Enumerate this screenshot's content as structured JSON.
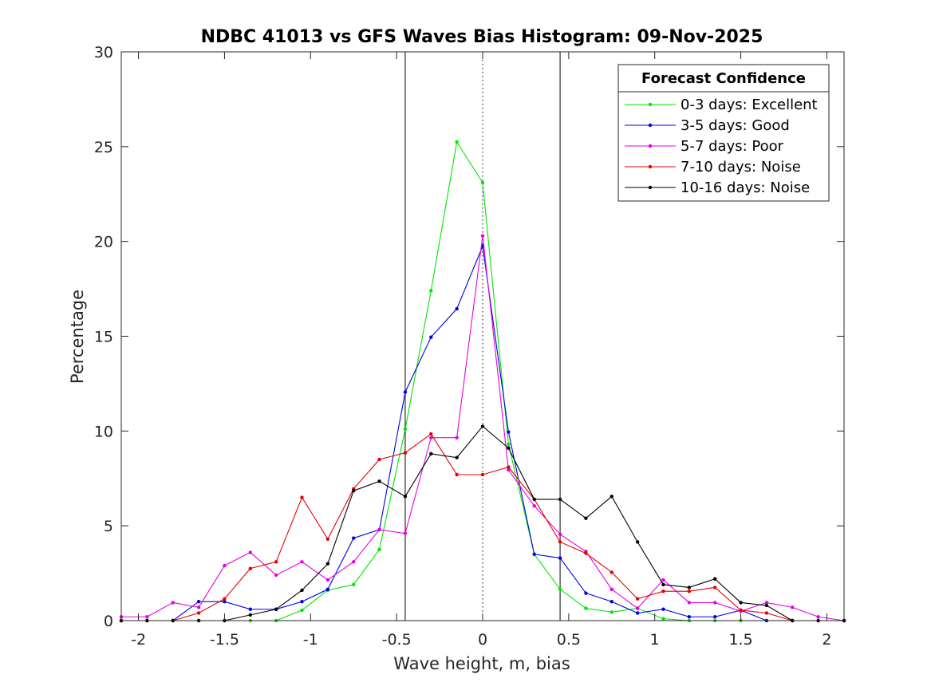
{
  "chart_data": {
    "type": "line",
    "title": "NDBC 41013 vs GFS Waves Bias Histogram: 09-Nov-2025",
    "xlabel": "Wave height, m, bias",
    "ylabel": "Percentage",
    "xlim": [
      -2.1,
      2.1
    ],
    "ylim": [
      0,
      30
    ],
    "xticks": [
      -2,
      -1.5,
      -1,
      -0.5,
      0,
      0.5,
      1,
      1.5,
      2
    ],
    "xtick_labels": [
      "-2",
      "-1.5",
      "-1",
      "-0.5",
      "0",
      "0.5",
      "1",
      "1.5",
      "2"
    ],
    "yticks": [
      0,
      5,
      10,
      15,
      20,
      25,
      30
    ],
    "ytick_labels": [
      "0",
      "5",
      "10",
      "15",
      "20",
      "25",
      "30"
    ],
    "reference_lines": [
      {
        "x": -0.45,
        "style": "solid"
      },
      {
        "x": 0,
        "style": "dotted"
      },
      {
        "x": 0.45,
        "style": "solid"
      }
    ],
    "legend": {
      "title": "Forecast Confidence",
      "position": "top-right"
    },
    "x": [
      -2.1,
      -1.95,
      -1.8,
      -1.65,
      -1.5,
      -1.35,
      -1.2,
      -1.05,
      -0.9,
      -0.75,
      -0.6,
      -0.45,
      -0.3,
      -0.15,
      0,
      0.15,
      0.3,
      0.45,
      0.6,
      0.75,
      0.9,
      1.05,
      1.2,
      1.35,
      1.5,
      1.65,
      1.8,
      1.95,
      2.1
    ],
    "series": [
      {
        "name": "0-3 days: Excellent",
        "color": "#00e600",
        "values": [
          0,
          0,
          0,
          0,
          0,
          0,
          0,
          0.55,
          1.6,
          1.9,
          3.75,
          10.1,
          17.4,
          25.25,
          23.1,
          9.3,
          3.5,
          1.65,
          0.65,
          0.45,
          0.65,
          0.1,
          0,
          0,
          0,
          0,
          0,
          0,
          0
        ]
      },
      {
        "name": "3-5 days: Good",
        "color": "#0000e6",
        "values": [
          0,
          0,
          0,
          1.0,
          1.0,
          0.6,
          0.6,
          1.0,
          1.65,
          4.35,
          4.8,
          12.05,
          14.95,
          16.45,
          19.75,
          9.95,
          3.5,
          3.3,
          1.45,
          1.0,
          0.4,
          0.6,
          0.2,
          0.2,
          0.55,
          0,
          0,
          0,
          0
        ]
      },
      {
        "name": "5-7 days: Poor",
        "color": "#e600e6",
        "values": [
          0.2,
          0.2,
          0.95,
          0.7,
          2.9,
          3.6,
          2.4,
          3.1,
          2.15,
          3.1,
          4.8,
          4.6,
          9.65,
          9.65,
          20.3,
          7.95,
          6.05,
          4.55,
          3.65,
          1.65,
          0.65,
          2.15,
          0.95,
          0.95,
          0.5,
          0.95,
          0.7,
          0.2,
          0
        ]
      },
      {
        "name": "7-10 days: Noise",
        "color": "#e60000",
        "values": [
          0,
          0,
          0,
          0.4,
          1.15,
          2.75,
          3.1,
          6.5,
          4.3,
          6.95,
          8.5,
          8.85,
          9.85,
          7.7,
          7.7,
          8.1,
          6.4,
          4.15,
          3.55,
          2.55,
          1.15,
          1.55,
          1.55,
          1.75,
          0.55,
          0.4,
          0,
          0,
          0
        ]
      },
      {
        "name": "10-16 days: Noise",
        "color": "#000000",
        "values": [
          0,
          0,
          0,
          0,
          0,
          0.3,
          0.6,
          1.6,
          3.0,
          6.85,
          7.35,
          6.55,
          8.8,
          8.6,
          10.25,
          9.1,
          6.4,
          6.4,
          5.4,
          6.55,
          4.15,
          1.9,
          1.75,
          2.2,
          0.95,
          0.8,
          0,
          0,
          0
        ]
      }
    ]
  }
}
